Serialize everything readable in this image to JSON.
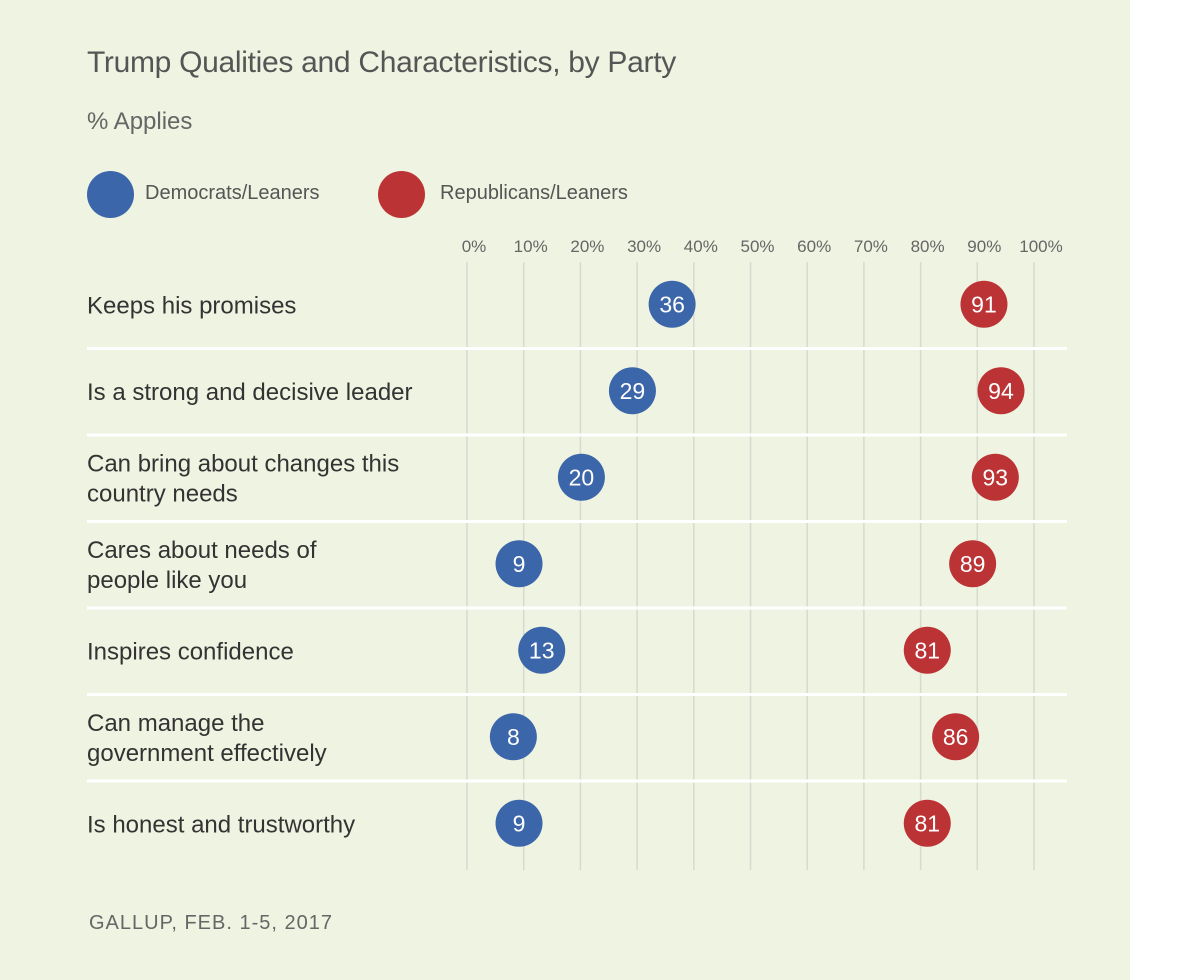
{
  "title": "Trump Qualities and Characteristics, by Party",
  "subtitle": "% Applies",
  "source": "GALLUP, FEB. 1-5, 2017",
  "colors": {
    "background": "#eff3e1",
    "democrats": "#3c66aa",
    "republicans": "#bb3335",
    "gridline": "#d7dad0",
    "separator": "#ffffff"
  },
  "legend": [
    {
      "name": "Democrats/Leaners",
      "color": "#3c66aa"
    },
    {
      "name": "Republicans/Leaners",
      "color": "#bb3335"
    }
  ],
  "chart_data": {
    "type": "scatter",
    "title": "Trump Qualities and Characteristics, by Party",
    "subtitle": "% Applies",
    "x_ticks": [
      "0%",
      "10%",
      "20%",
      "30%",
      "40%",
      "50%",
      "60%",
      "70%",
      "80%",
      "90%",
      "100%"
    ],
    "xlim": [
      0,
      100
    ],
    "grid": true,
    "legend_position": "top-left",
    "categories": [
      [
        "Keeps his promises"
      ],
      [
        "Is a strong and decisive leader"
      ],
      [
        "Can bring about changes this",
        "country needs"
      ],
      [
        "Cares about needs of",
        "people like you"
      ],
      [
        "Inspires confidence"
      ],
      [
        "Can manage the",
        "government effectively"
      ],
      [
        "Is honest and trustworthy"
      ]
    ],
    "series": [
      {
        "name": "Democrats/Leaners",
        "values": [
          36,
          29,
          20,
          9,
          13,
          8,
          9
        ]
      },
      {
        "name": "Republicans/Leaners",
        "values": [
          91,
          94,
          93,
          89,
          81,
          86,
          81
        ]
      }
    ]
  }
}
